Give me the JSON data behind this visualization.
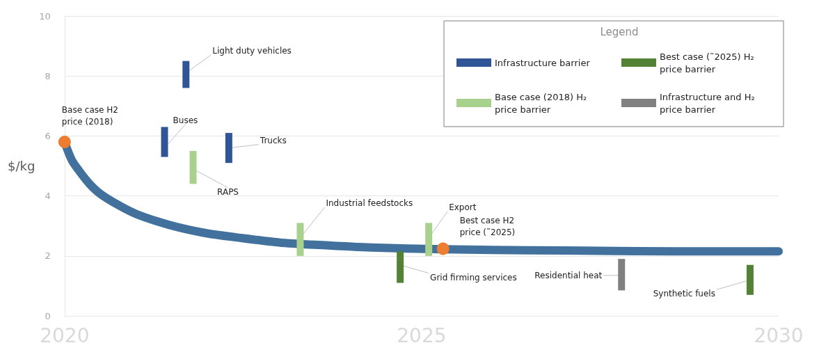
{
  "chart_data": {
    "type": "bar",
    "ylabel": "$/kg",
    "legend_title": "Legend",
    "legend": "top right",
    "grid": "y",
    "xlim": [
      2020,
      2030
    ],
    "xticks": [
      2020,
      2025,
      2030
    ],
    "ylim": [
      0,
      10
    ],
    "yticks": [
      0,
      2,
      4,
      6,
      8,
      10
    ],
    "series": [
      {
        "name": "Infrastructure barrier",
        "color": "#2f5597",
        "x": [
          2021.4,
          2021.7,
          2022.3
        ],
        "base": [
          5.3,
          7.6,
          5.1
        ],
        "values": [
          1.0,
          0.9,
          1.0
        ]
      },
      {
        "name": "Best case (˜2025) H₂ price barrier",
        "color": "#548235",
        "x": [
          2024.7,
          2029.6
        ],
        "base": [
          1.1,
          0.7
        ],
        "values": [
          1.05,
          1.0
        ]
      },
      {
        "name": "Base case (2018) H₂ price barrier",
        "color": "#a9d18e",
        "x": [
          2021.8,
          2023.3,
          2025.1
        ],
        "base": [
          4.4,
          2.0,
          2.0
        ],
        "values": [
          1.1,
          1.1,
          1.1
        ]
      },
      {
        "name": "Infrastructure and H₂ price barrier",
        "color": "#808080",
        "x": [
          2027.8
        ],
        "base": [
          0.85
        ],
        "values": [
          1.05
        ]
      },
      {
        "type": "line",
        "color": "#41719c",
        "x": [
          2020,
          2020.1,
          2020.2,
          2020.35,
          2020.5,
          2020.75,
          2021,
          2021.3,
          2021.6,
          2022,
          2022.4,
          2023,
          2023.5,
          2024.3,
          2025.3,
          2026,
          2027,
          2028,
          2029,
          2030
        ],
        "values": [
          5.8,
          5.2,
          4.85,
          4.4,
          4.07,
          3.7,
          3.4,
          3.15,
          2.95,
          2.75,
          2.62,
          2.45,
          2.37,
          2.28,
          2.22,
          2.2,
          2.18,
          2.16,
          2.15,
          2.15
        ]
      },
      {
        "type": "scatter",
        "marker": "circle",
        "color": "#ed7d31",
        "x": [
          2020,
          2025.3
        ],
        "values": [
          5.8,
          2.24
        ]
      }
    ],
    "annotations": [
      {
        "text": "Light duty vehicles",
        "x": 2021.7,
        "y": 8.1
      },
      {
        "text": "Buses",
        "x": 2021.4,
        "y": 5.6
      },
      {
        "text": "Trucks",
        "x": 2022.3,
        "y": 5.6
      },
      {
        "text": "RAPS",
        "x": 2021.8,
        "y": 4.9
      },
      {
        "text": "Industrial feedstocks",
        "x": 2023.3,
        "y": 2.6
      },
      {
        "text": "Export",
        "x": 2025.1,
        "y": 2.6
      },
      {
        "text": "Best case H2\nprice (˜2025)",
        "x": 2025.3,
        "y": 2.24
      },
      {
        "text": "Base case H2\nprice (2018)",
        "x": 2020,
        "y": 5.8
      },
      {
        "text": "Grid firming services",
        "x": 2024.7,
        "y": 1.7
      },
      {
        "text": "Residential heat",
        "x": 2027.8,
        "y": 1.35
      },
      {
        "text": "Synthetic fuels",
        "x": 2029.6,
        "y": 1.2
      }
    ]
  }
}
